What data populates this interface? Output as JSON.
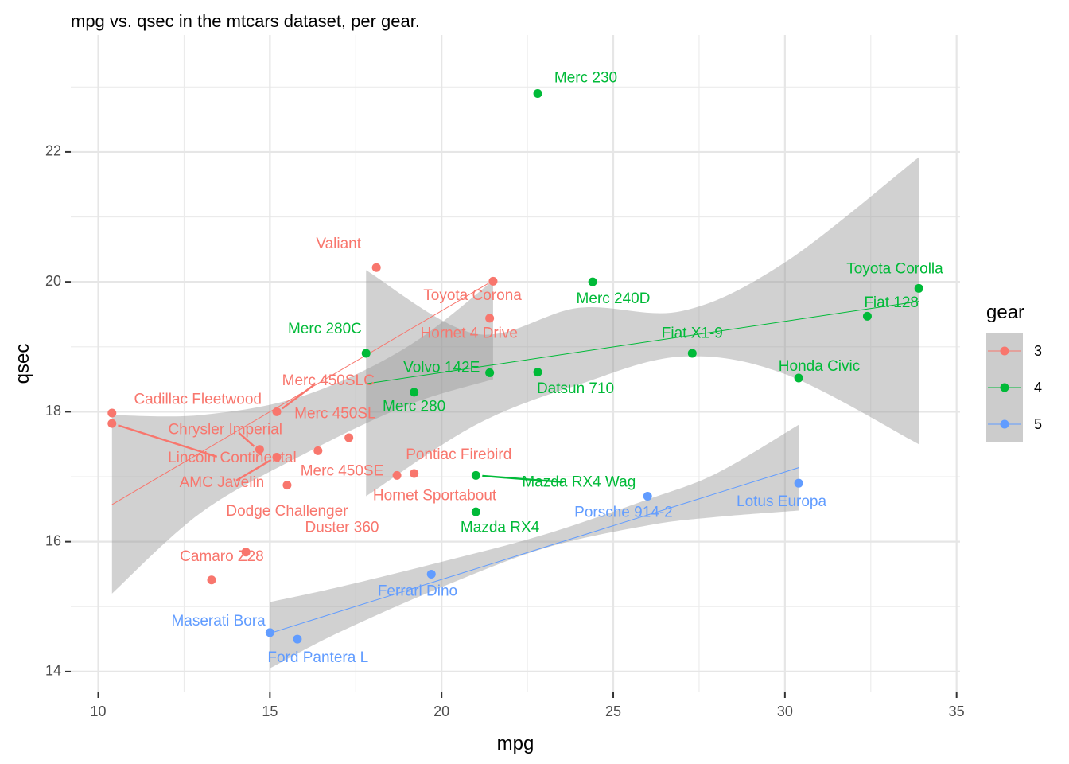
{
  "chart_data": {
    "type": "scatter",
    "title": "mpg vs. qsec in the mtcars dataset, per gear.",
    "xlabel": "mpg",
    "ylabel": "qsec",
    "xlim": [
      9.2,
      35.1
    ],
    "ylim": [
      13.68,
      23.8
    ],
    "xticks": [
      10,
      15,
      20,
      25,
      30,
      35
    ],
    "yticks": [
      14,
      16,
      18,
      20,
      22
    ],
    "grid": true,
    "legend": {
      "title": "gear",
      "position": "right",
      "entries": [
        {
          "label": "3",
          "color": "#F8766D"
        },
        {
          "label": "4",
          "color": "#00BA38"
        },
        {
          "label": "5",
          "color": "#619CFF"
        }
      ]
    },
    "series": [
      {
        "name": "3",
        "color": "#F8766D",
        "fit": {
          "x0": 10.4,
          "y0": 16.57,
          "x1": 21.5,
          "y1": 20.02,
          "band_x": [
            10.4,
            13,
            16,
            19,
            21.5
          ],
          "band_lo": [
            15.2,
            16.45,
            17.35,
            18.1,
            18.5
          ],
          "band_hi": [
            17.95,
            17.95,
            18.25,
            19.0,
            20.02
          ]
        },
        "points": [
          {
            "x": 10.4,
            "y": 17.98,
            "label": "Cadillac Fleetwood",
            "lx": 12.9,
            "ly": 18.18
          },
          {
            "x": 10.4,
            "y": 17.82,
            "label": "Lincoln Continental",
            "lx": 13.9,
            "ly": 17.28,
            "seg": true
          },
          {
            "x": 13.3,
            "y": 15.41,
            "label": "Camaro Z28",
            "lx": 13.6,
            "ly": 15.76
          },
          {
            "x": 14.3,
            "y": 15.84,
            "label": "Duster 360",
            "lx": 17.1,
            "ly": 16.21
          },
          {
            "x": 14.7,
            "y": 17.42,
            "label": "Chrysler Imperial",
            "lx": 13.7,
            "ly": 17.72,
            "seg": true
          },
          {
            "x": 15.2,
            "y": 18.0,
            "label": "Merc 450SLC",
            "lx": 16.7,
            "ly": 18.47,
            "seg": true
          },
          {
            "x": 15.2,
            "y": 17.3,
            "label": "AMC Javelin",
            "lx": 13.6,
            "ly": 16.9,
            "seg": true
          },
          {
            "x": 15.5,
            "y": 16.87,
            "label": "Dodge Challenger",
            "lx": 15.5,
            "ly": 16.46
          },
          {
            "x": 16.4,
            "y": 17.4,
            "label": "Merc 450SE",
            "lx": 17.1,
            "ly": 17.08
          },
          {
            "x": 17.3,
            "y": 17.6,
            "label": "Merc 450SL",
            "lx": 16.9,
            "ly": 17.96
          },
          {
            "x": 18.1,
            "y": 20.22,
            "label": "Valiant",
            "lx": 17.0,
            "ly": 20.58
          },
          {
            "x": 18.7,
            "y": 17.02,
            "label": "Hornet Sportabout",
            "lx": 19.8,
            "ly": 16.7
          },
          {
            "x": 19.2,
            "y": 17.05,
            "label": "Pontiac Firebird",
            "lx": 20.5,
            "ly": 17.33
          },
          {
            "x": 21.4,
            "y": 19.44,
            "label": "Hornet 4 Drive",
            "lx": 20.8,
            "ly": 19.2
          },
          {
            "x": 21.5,
            "y": 20.01,
            "label": "Toyota Corona",
            "lx": 20.9,
            "ly": 19.78
          }
        ]
      },
      {
        "name": "4",
        "color": "#00BA38",
        "fit": {
          "x0": 17.8,
          "y0": 18.43,
          "x1": 33.9,
          "y1": 19.7,
          "band_x": [
            17.8,
            21,
            24,
            27,
            30,
            33.9
          ],
          "band_lo": [
            16.7,
            17.8,
            18.42,
            18.85,
            18.58,
            17.5
          ],
          "band_hi": [
            20.18,
            19.2,
            19.6,
            19.55,
            20.3,
            21.92
          ]
        },
        "points": [
          {
            "x": 17.8,
            "y": 18.9,
            "label": "Merc 280C",
            "lx": 16.6,
            "ly": 19.27
          },
          {
            "x": 19.2,
            "y": 18.3,
            "label": "Merc 280",
            "lx": 19.2,
            "ly": 18.07
          },
          {
            "x": 21.0,
            "y": 16.46,
            "label": "Mazda RX4",
            "lx": 21.7,
            "ly": 16.21
          },
          {
            "x": 21.0,
            "y": 17.02,
            "label": "Mazda RX4 Wag",
            "lx": 24.0,
            "ly": 16.91,
            "seg": true
          },
          {
            "x": 21.4,
            "y": 18.6,
            "label": "Volvo 142E",
            "lx": 20.0,
            "ly": 18.67
          },
          {
            "x": 22.8,
            "y": 18.61,
            "label": "Datsun 710",
            "lx": 23.9,
            "ly": 18.35
          },
          {
            "x": 22.8,
            "y": 22.9,
            "label": "Merc 230",
            "lx": 24.2,
            "ly": 23.13
          },
          {
            "x": 24.4,
            "y": 20.0,
            "label": "Merc 240D",
            "lx": 25.0,
            "ly": 19.73
          },
          {
            "x": 27.3,
            "y": 18.9,
            "label": "Fiat X1-9",
            "lx": 27.3,
            "ly": 19.2
          },
          {
            "x": 30.4,
            "y": 18.52,
            "label": "Honda Civic",
            "lx": 31.0,
            "ly": 18.69
          },
          {
            "x": 32.4,
            "y": 19.47,
            "label": "Fiat 128",
            "lx": 33.1,
            "ly": 19.67
          },
          {
            "x": 33.9,
            "y": 19.9,
            "label": "Toyota Corolla",
            "lx": 33.2,
            "ly": 20.19
          }
        ]
      },
      {
        "name": "5",
        "color": "#619CFF",
        "fit": {
          "x0": 15.0,
          "y0": 14.59,
          "x1": 30.4,
          "y1": 17.14,
          "band_x": [
            15,
            17,
            20,
            23,
            26,
            28,
            30.4
          ],
          "band_lo": [
            14.05,
            14.6,
            15.3,
            15.9,
            16.25,
            16.38,
            16.48
          ],
          "band_hi": [
            15.07,
            15.3,
            15.69,
            16.11,
            16.65,
            17.05,
            17.8
          ]
        },
        "points": [
          {
            "x": 15.0,
            "y": 14.6,
            "label": "Maserati Bora",
            "lx": 13.5,
            "ly": 14.77
          },
          {
            "x": 15.8,
            "y": 14.5,
            "label": "Ford Pantera L",
            "lx": 16.4,
            "ly": 14.21
          },
          {
            "x": 19.7,
            "y": 15.5,
            "label": "Ferrari Dino",
            "lx": 19.3,
            "ly": 15.23
          },
          {
            "x": 26.0,
            "y": 16.7,
            "label": "Porsche 914-2",
            "lx": 25.3,
            "ly": 16.44
          },
          {
            "x": 30.4,
            "y": 16.9,
            "label": "Lotus Europa",
            "lx": 29.9,
            "ly": 16.61
          }
        ]
      }
    ]
  }
}
